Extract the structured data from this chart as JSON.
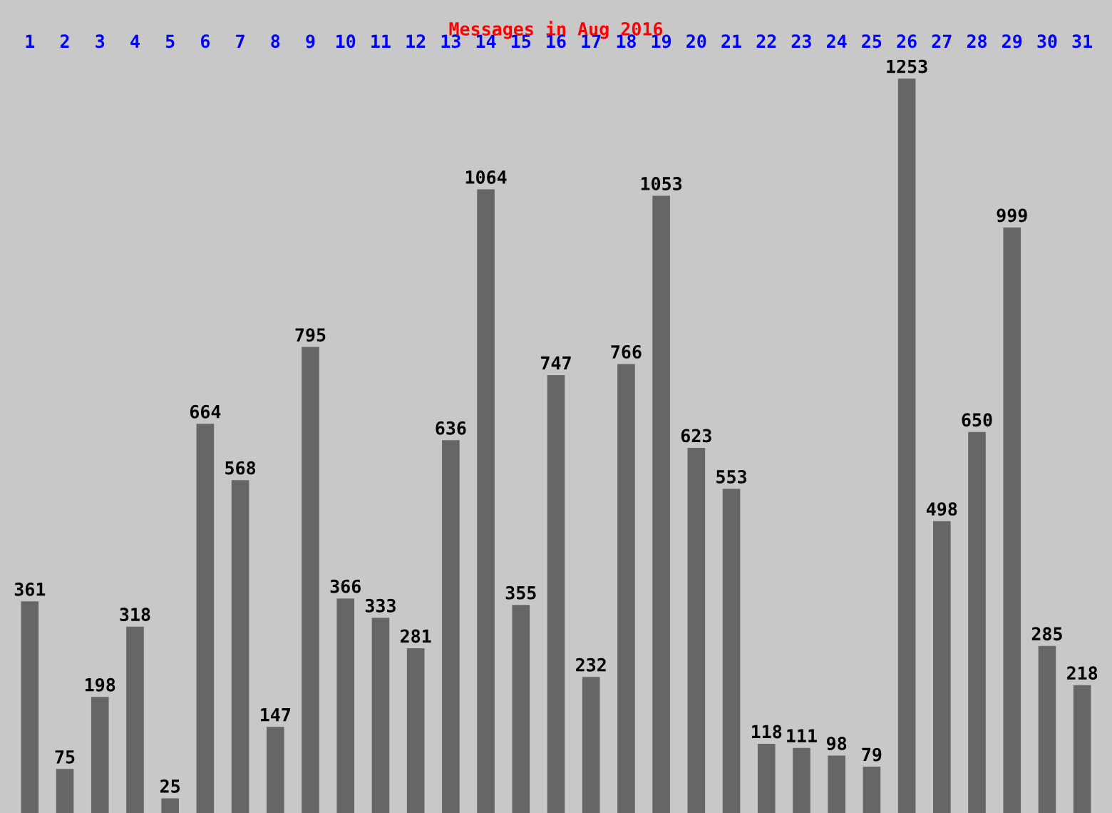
{
  "chart_data": {
    "type": "bar",
    "title": "Messages in Aug 2016",
    "categories": [
      "1",
      "2",
      "3",
      "4",
      "5",
      "6",
      "7",
      "8",
      "9",
      "10",
      "11",
      "12",
      "13",
      "14",
      "15",
      "16",
      "17",
      "18",
      "19",
      "20",
      "21",
      "22",
      "23",
      "24",
      "25",
      "26",
      "27",
      "28",
      "29",
      "30",
      "31"
    ],
    "values": [
      361,
      75,
      198,
      318,
      25,
      664,
      568,
      147,
      795,
      366,
      333,
      281,
      636,
      1064,
      355,
      747,
      232,
      766,
      1053,
      623,
      553,
      118,
      111,
      98,
      79,
      1253,
      498,
      650,
      999,
      285,
      218
    ],
    "color": "#666666",
    "data_labels": true
  }
}
